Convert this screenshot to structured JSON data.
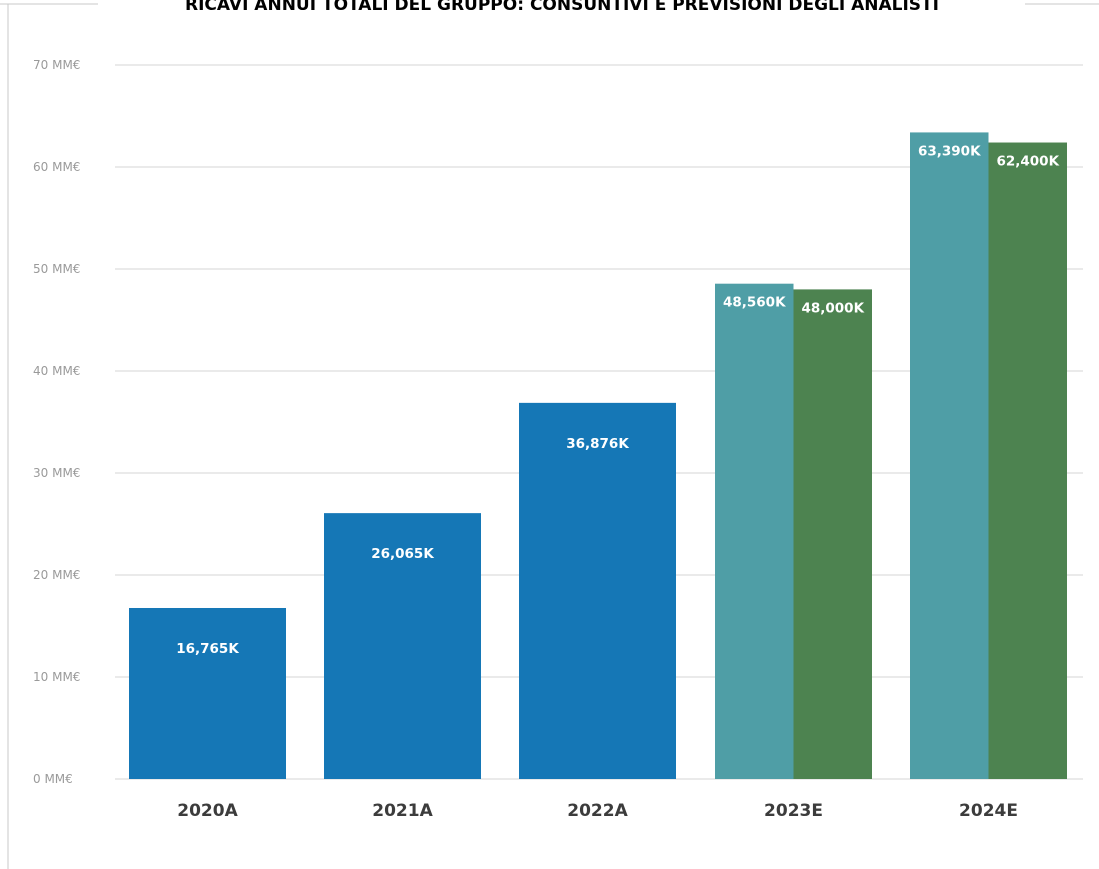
{
  "chart_data": {
    "type": "bar",
    "title": "RICAVI ANNUI TOTALI DEL GRUPPO: CONSUNTIVI E PREVISIONI DEGLI ANALISTI",
    "xlabel": "",
    "ylabel": "",
    "ylim": [
      0,
      70
    ],
    "y_ticks": [
      {
        "value": 0,
        "label": "0 MM€"
      },
      {
        "value": 10,
        "label": "10 MM€"
      },
      {
        "value": 20,
        "label": "20 MM€"
      },
      {
        "value": 30,
        "label": "30 MM€"
      },
      {
        "value": 40,
        "label": "40 MM€"
      },
      {
        "value": 50,
        "label": "50 MM€"
      },
      {
        "value": 60,
        "label": "60 MM€"
      },
      {
        "value": 70,
        "label": "70 MM€"
      }
    ],
    "grid": true,
    "legend": "none",
    "colors": {
      "actual": "#1577b6",
      "estimate_teal": "#4f9ea6",
      "estimate_green": "#4d8350"
    },
    "groups": [
      {
        "category": "2020A",
        "bars": [
          {
            "value": 16.765,
            "label": "16,765K",
            "color_key": "actual"
          }
        ]
      },
      {
        "category": "2021A",
        "bars": [
          {
            "value": 26.065,
            "label": "26,065K",
            "color_key": "actual"
          }
        ]
      },
      {
        "category": "2022A",
        "bars": [
          {
            "value": 36.876,
            "label": "36,876K",
            "color_key": "actual"
          }
        ]
      },
      {
        "category": "2023E",
        "bars": [
          {
            "value": 48.56,
            "label": "48,560K",
            "color_key": "estimate_teal"
          },
          {
            "value": 48.0,
            "label": "48,000K",
            "color_key": "estimate_green"
          }
        ]
      },
      {
        "category": "2024E",
        "bars": [
          {
            "value": 63.39,
            "label": "63,390K",
            "color_key": "estimate_teal"
          },
          {
            "value": 62.4,
            "label": "62,400K",
            "color_key": "estimate_green"
          }
        ]
      }
    ]
  }
}
